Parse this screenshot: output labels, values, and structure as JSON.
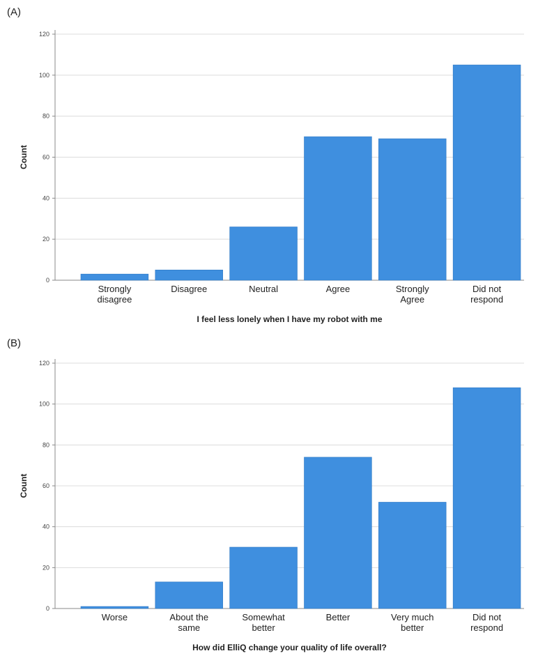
{
  "chart_data": [
    {
      "type": "bar",
      "panel_label": "(A)",
      "categories": [
        [
          "Strongly",
          "disagree"
        ],
        [
          "Disagree"
        ],
        [
          "Neutral"
        ],
        [
          "Agree"
        ],
        [
          "Strongly",
          "Agree"
        ],
        [
          "Did not",
          "respond"
        ]
      ],
      "values": [
        3,
        5,
        26,
        70,
        69,
        105
      ],
      "xlabel": "I feel less lonely when I have my robot with me",
      "ylabel": "Count",
      "ylim": [
        0,
        120
      ],
      "yticks": [
        0,
        20,
        40,
        60,
        80,
        100,
        120
      ],
      "grid": true,
      "bar_color": "#3f8fdf"
    },
    {
      "type": "bar",
      "panel_label": "(B)",
      "categories": [
        [
          "Worse"
        ],
        [
          "About the",
          "same"
        ],
        [
          "Somewhat",
          "better"
        ],
        [
          "Better"
        ],
        [
          "Very much",
          "better"
        ],
        [
          "Did not",
          "respond"
        ]
      ],
      "values": [
        1,
        13,
        30,
        74,
        52,
        108
      ],
      "xlabel": "How did ElliQ change your quality of life overall?",
      "ylabel": "Count",
      "ylim": [
        0,
        120
      ],
      "yticks": [
        0,
        20,
        40,
        60,
        80,
        100,
        120
      ],
      "grid": true,
      "bar_color": "#3f8fdf"
    }
  ]
}
